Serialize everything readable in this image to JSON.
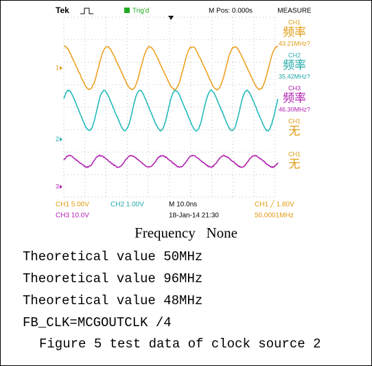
{
  "scope": {
    "brand": "Tek",
    "trigger": "Trig'd",
    "position": "M Pos: 0.000s",
    "menu": "MEASURE",
    "measurements": [
      {
        "channel": "CH1",
        "label": "频率",
        "value": "43.21MHz?"
      },
      {
        "channel": "CH2",
        "label": "频率",
        "value": "35.42MHz?"
      },
      {
        "channel": "CH3",
        "label": "频率",
        "value": "46.30MHz?"
      },
      {
        "channel": "CH1",
        "label": "无"
      },
      {
        "channel": "CH1",
        "label": "无"
      }
    ],
    "markers": [
      "1",
      "2",
      "3"
    ],
    "footer": {
      "ch1": "CH1  5.00V",
      "ch2": "CH2  1.00V",
      "time": "M 10.0ns",
      "trig": "CH1 ╱ 1.80V",
      "ch3": "CH3  10.0V",
      "date": "18-Jan-14 21:30",
      "freq": "50.0001MHz"
    }
  },
  "caption": "Frequency   None",
  "lines": [
    "Theoretical value 50MHz",
    "Theoretical value 96MHz",
    "Theoretical value 48MHz",
    "FB_CLK=MCGOUTCLK /4"
  ],
  "figure_caption": "Figure 5 test data of clock source 2"
}
